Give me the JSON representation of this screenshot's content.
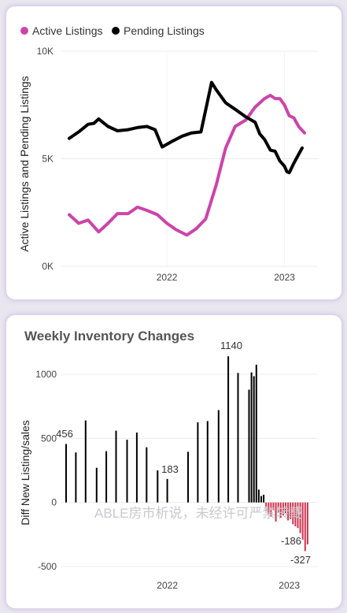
{
  "chart_data": [
    {
      "type": "line",
      "title": "",
      "ylabel": "Active Listings and Pending Listings",
      "yticks": [
        "0K",
        "5K",
        "10K"
      ],
      "ylim": [
        0,
        10000
      ],
      "xticks": [
        "2022",
        "2023"
      ],
      "legend_position": "top-left",
      "series": [
        {
          "name": "Active Listings",
          "color": "#cc44aa",
          "points": [
            [
              2021.17,
              2400
            ],
            [
              2021.25,
              2000
            ],
            [
              2021.33,
              2150
            ],
            [
              2021.42,
              1600
            ],
            [
              2021.5,
              2000
            ],
            [
              2021.58,
              2450
            ],
            [
              2021.67,
              2450
            ],
            [
              2021.75,
              2750
            ],
            [
              2021.83,
              2600
            ],
            [
              2021.92,
              2400
            ],
            [
              2022.0,
              2000
            ],
            [
              2022.08,
              1700
            ],
            [
              2022.17,
              1450
            ],
            [
              2022.25,
              1750
            ],
            [
              2022.33,
              2200
            ],
            [
              2022.42,
              3800
            ],
            [
              2022.5,
              5500
            ],
            [
              2022.58,
              6500
            ],
            [
              2022.67,
              6800
            ],
            [
              2022.75,
              7400
            ],
            [
              2022.83,
              7800
            ],
            [
              2022.88,
              7950
            ],
            [
              2022.92,
              7800
            ],
            [
              2022.96,
              7800
            ],
            [
              2023.0,
              7500
            ],
            [
              2023.04,
              7000
            ],
            [
              2023.08,
              6900
            ],
            [
              2023.12,
              6500
            ],
            [
              2023.17,
              6200
            ]
          ]
        },
        {
          "name": "Pending Listings",
          "color": "#000000",
          "points": [
            [
              2021.17,
              5950
            ],
            [
              2021.25,
              6250
            ],
            [
              2021.33,
              6600
            ],
            [
              2021.38,
              6650
            ],
            [
              2021.42,
              6850
            ],
            [
              2021.5,
              6500
            ],
            [
              2021.58,
              6300
            ],
            [
              2021.67,
              6350
            ],
            [
              2021.75,
              6450
            ],
            [
              2021.83,
              6500
            ],
            [
              2021.9,
              6350
            ],
            [
              2021.96,
              5550
            ],
            [
              2022.04,
              5800
            ],
            [
              2022.13,
              6050
            ],
            [
              2022.21,
              6200
            ],
            [
              2022.29,
              6250
            ],
            [
              2022.38,
              8550
            ],
            [
              2022.42,
              8200
            ],
            [
              2022.5,
              7600
            ],
            [
              2022.58,
              7300
            ],
            [
              2022.67,
              6950
            ],
            [
              2022.75,
              6700
            ],
            [
              2022.79,
              6150
            ],
            [
              2022.83,
              5900
            ],
            [
              2022.88,
              5400
            ],
            [
              2022.92,
              5350
            ],
            [
              2022.96,
              4900
            ],
            [
              2023.0,
              4650
            ],
            [
              2023.02,
              4400
            ],
            [
              2023.04,
              4350
            ],
            [
              2023.08,
              4800
            ],
            [
              2023.1,
              5000
            ],
            [
              2023.15,
              5500
            ]
          ]
        }
      ]
    },
    {
      "type": "bar",
      "title": "Weekly Inventory Changes",
      "ylabel": "Diff New Listing/sales",
      "yticks": [
        "-500",
        "0",
        "500",
        "1000"
      ],
      "ylim": [
        -500,
        1000
      ],
      "xticks": [
        "2022",
        "2023"
      ],
      "bar_color_positive": "#000000",
      "bar_color_negative": "#d0344f",
      "data_labels": [
        "456",
        "183",
        "1140",
        "-186",
        "-327"
      ],
      "bars": [
        [
          2021.17,
          456
        ],
        [
          2021.25,
          390
        ],
        [
          2021.33,
          640
        ],
        [
          2021.42,
          270
        ],
        [
          2021.5,
          400
        ],
        [
          2021.58,
          560
        ],
        [
          2021.67,
          490
        ],
        [
          2021.75,
          545
        ],
        [
          2021.83,
          430
        ],
        [
          2021.92,
          250
        ],
        [
          2022.0,
          183
        ],
        [
          2022.17,
          395
        ],
        [
          2022.25,
          625
        ],
        [
          2022.33,
          635
        ],
        [
          2022.42,
          720
        ],
        [
          2022.5,
          1140
        ],
        [
          2022.58,
          1010
        ],
        [
          2022.67,
          880
        ],
        [
          2022.69,
          1015
        ],
        [
          2022.71,
          985
        ],
        [
          2022.73,
          1075
        ],
        [
          2022.75,
          100
        ],
        [
          2022.77,
          50
        ],
        [
          2022.79,
          60
        ],
        [
          2022.81,
          -70
        ],
        [
          2022.83,
          -90
        ],
        [
          2022.85,
          -110
        ],
        [
          2022.87,
          -60
        ],
        [
          2022.89,
          -150
        ],
        [
          2022.91,
          -80
        ],
        [
          2022.93,
          -120
        ],
        [
          2022.95,
          -100
        ],
        [
          2022.97,
          -90
        ],
        [
          2022.99,
          -140
        ],
        [
          2023.01,
          -130
        ],
        [
          2023.03,
          -170
        ],
        [
          2023.05,
          -186
        ],
        [
          2023.07,
          -200
        ],
        [
          2023.09,
          -240
        ],
        [
          2023.11,
          -290
        ],
        [
          2023.13,
          -380
        ],
        [
          2023.15,
          -327
        ]
      ]
    }
  ]
}
